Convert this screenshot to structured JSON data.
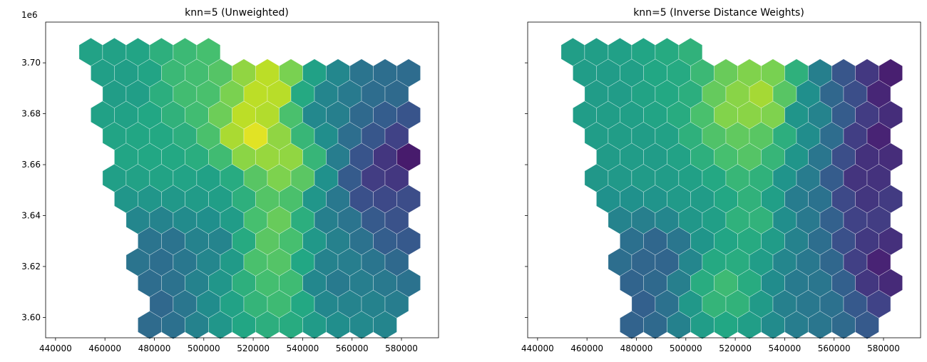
{
  "chart_data": [
    {
      "type": "heatmap",
      "title": "knn=5 (Unweighted)",
      "xlabel": "",
      "ylabel": "",
      "xlim": [
        436000,
        595000
      ],
      "ylim": [
        3592000,
        3716000
      ],
      "xticks": [
        440000,
        460000,
        480000,
        500000,
        520000,
        540000,
        560000,
        580000
      ],
      "xtick_labels": [
        "440000",
        "460000",
        "480000",
        "500000",
        "520000",
        "540000",
        "560000",
        "580000"
      ],
      "yticks": [
        3600000,
        3620000,
        3640000,
        3660000,
        3680000,
        3700000
      ],
      "ytick_labels": [
        "3.60",
        "3.62",
        "3.64",
        "3.66",
        "3.68",
        "3.70"
      ],
      "y_offset_label": "1e6",
      "colormap": "viridis",
      "grid": false,
      "hex_grid": {
        "cell_size_m": 5500,
        "footprint": "hexagonal cells over a quadrilateral region spanning roughly x 450000–585000, y 3597000–3709000"
      },
      "value_field": [
        {
          "x": 520000,
          "y": 3672000,
          "value": 1.0
        },
        {
          "x": 527000,
          "y": 3690000,
          "value": 0.95
        },
        {
          "x": 534000,
          "y": 3660000,
          "value": 0.88
        },
        {
          "x": 530000,
          "y": 3638000,
          "value": 0.8
        },
        {
          "x": 527000,
          "y": 3625000,
          "value": 0.78
        },
        {
          "x": 532000,
          "y": 3612000,
          "value": 0.72
        },
        {
          "x": 495000,
          "y": 3690000,
          "value": 0.7
        },
        {
          "x": 482000,
          "y": 3668000,
          "value": 0.6
        },
        {
          "x": 470000,
          "y": 3690000,
          "value": 0.55
        },
        {
          "x": 505000,
          "y": 3650000,
          "value": 0.55
        },
        {
          "x": 548000,
          "y": 3682000,
          "value": 0.42
        },
        {
          "x": 552000,
          "y": 3640000,
          "value": 0.4
        },
        {
          "x": 505000,
          "y": 3630000,
          "value": 0.42
        },
        {
          "x": 485000,
          "y": 3625000,
          "value": 0.35
        },
        {
          "x": 480000,
          "y": 3605000,
          "value": 0.33
        },
        {
          "x": 550000,
          "y": 3615000,
          "value": 0.38
        },
        {
          "x": 572000,
          "y": 3690000,
          "value": 0.36
        },
        {
          "x": 572000,
          "y": 3672000,
          "value": 0.28
        },
        {
          "x": 580000,
          "y": 3664000,
          "value": 0.02
        },
        {
          "x": 568000,
          "y": 3652000,
          "value": 0.15
        },
        {
          "x": 578000,
          "y": 3640000,
          "value": 0.25
        }
      ]
    },
    {
      "type": "heatmap",
      "title": "knn=5 (Inverse Distance Weights)",
      "xlabel": "",
      "ylabel": "",
      "xlim": [
        436000,
        595000
      ],
      "ylim": [
        3592000,
        3716000
      ],
      "xticks": [
        440000,
        460000,
        480000,
        500000,
        520000,
        540000,
        560000,
        580000
      ],
      "xtick_labels": [
        "440000",
        "460000",
        "480000",
        "500000",
        "520000",
        "540000",
        "560000",
        "580000"
      ],
      "yticks": [
        3600000,
        3620000,
        3640000,
        3660000,
        3680000,
        3700000
      ],
      "ytick_labels": [
        "",
        "",
        "",
        "",
        "",
        ""
      ],
      "colormap": "viridis",
      "grid": false,
      "value_field": [
        {
          "x": 520000,
          "y": 3682000,
          "value": 0.85
        },
        {
          "x": 533000,
          "y": 3685000,
          "value": 0.95
        },
        {
          "x": 530000,
          "y": 3695000,
          "value": 0.82
        },
        {
          "x": 525000,
          "y": 3665000,
          "value": 0.75
        },
        {
          "x": 527000,
          "y": 3640000,
          "value": 0.68
        },
        {
          "x": 515000,
          "y": 3612000,
          "value": 0.7
        },
        {
          "x": 495000,
          "y": 3690000,
          "value": 0.6
        },
        {
          "x": 470000,
          "y": 3690000,
          "value": 0.55
        },
        {
          "x": 485000,
          "y": 3665000,
          "value": 0.55
        },
        {
          "x": 505000,
          "y": 3645000,
          "value": 0.55
        },
        {
          "x": 548000,
          "y": 3682000,
          "value": 0.45
        },
        {
          "x": 548000,
          "y": 3645000,
          "value": 0.4
        },
        {
          "x": 490000,
          "y": 3625000,
          "value": 0.3
        },
        {
          "x": 480000,
          "y": 3605000,
          "value": 0.3
        },
        {
          "x": 550000,
          "y": 3612000,
          "value": 0.4
        },
        {
          "x": 567000,
          "y": 3690000,
          "value": 0.25
        },
        {
          "x": 580000,
          "y": 3692000,
          "value": 0.05
        },
        {
          "x": 578000,
          "y": 3670000,
          "value": 0.08
        },
        {
          "x": 572000,
          "y": 3652000,
          "value": 0.12
        },
        {
          "x": 575000,
          "y": 3638000,
          "value": 0.18
        },
        {
          "x": 580000,
          "y": 3622000,
          "value": 0.08
        }
      ]
    }
  ]
}
